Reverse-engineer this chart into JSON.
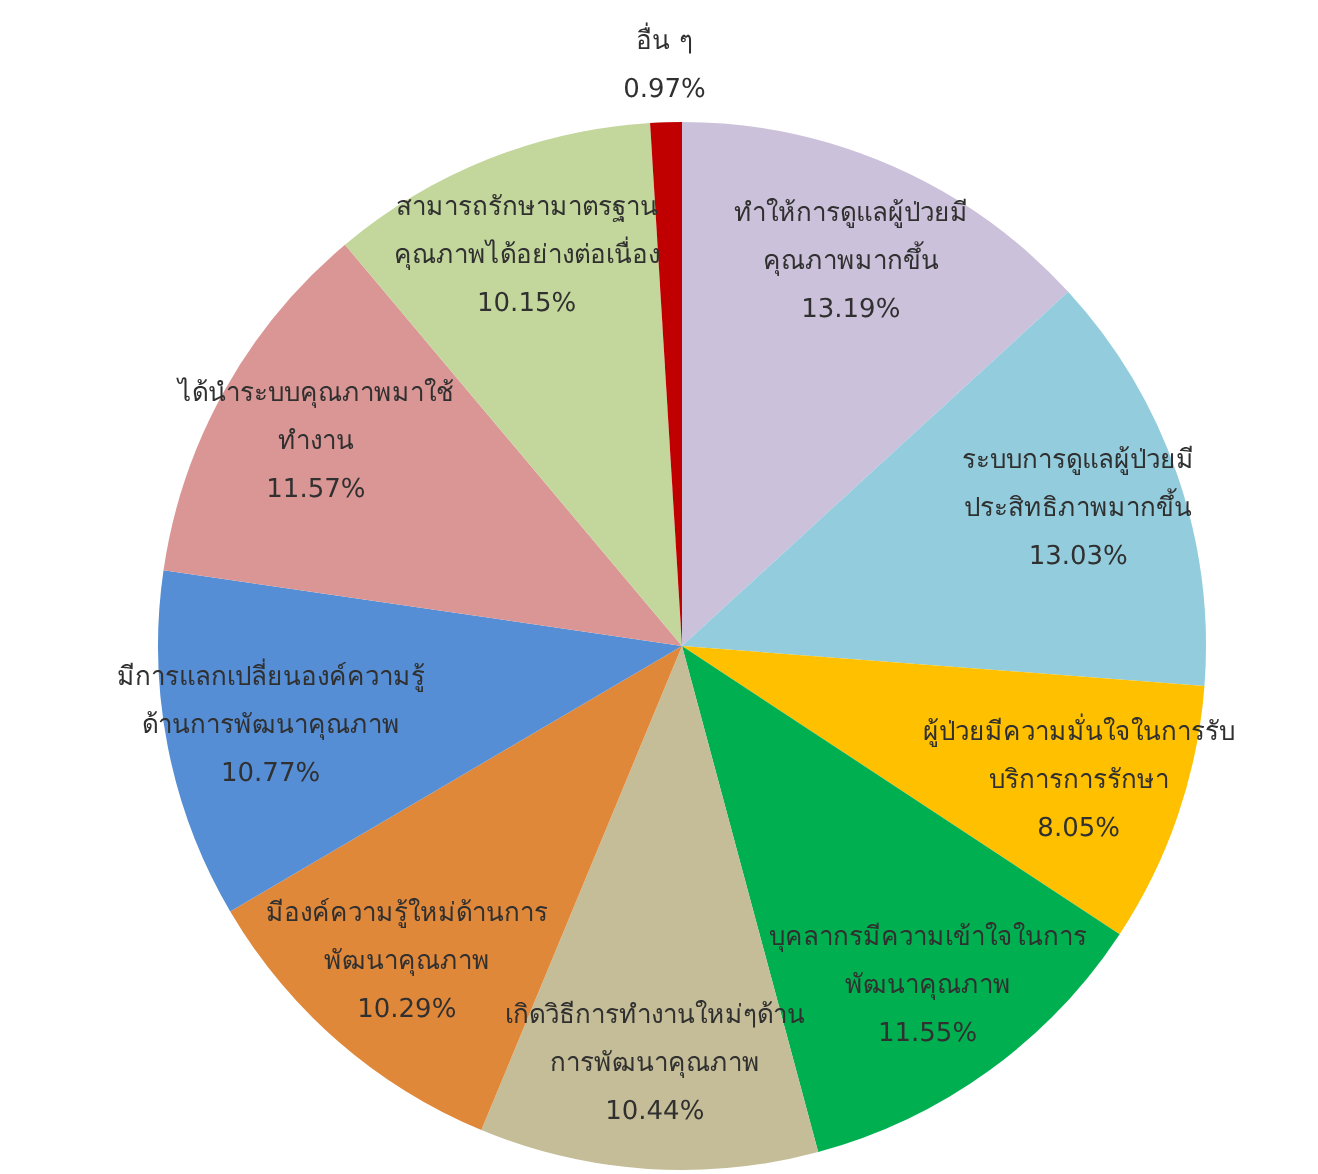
{
  "chart_data": {
    "type": "pie",
    "categories": [
      "ทำให้การดูแลผู้ป่วยมีคุณภาพมากขึ้น",
      "ระบบการดูแลผู้ป่วยมีประสิทธิภาพมากขึ้น",
      "ผู้ป่วยมีความมั่นใจในการรับบริการการรักษา",
      "บุคลากรมีความเข้าใจในการพัฒนาคุณภาพ",
      "เกิดวิธีการทำงานใหม่ๆด้านการพัฒนาคุณภาพ",
      "มีองค์ความรู้ใหม่ด้านการพัฒนาคุณภาพ",
      "มีการแลกเปลี่ยนองค์ความรู้ด้านการพัฒนาคุณภาพ",
      "ได้นำระบบคุณภาพมาใช้ทำงาน",
      "สามารถรักษามาตรฐานคุณภาพได้อย่างต่อเนื่อง",
      "อื่น ๆ"
    ],
    "values": [
      13.19,
      13.03,
      8.05,
      11.55,
      10.44,
      10.29,
      10.77,
      11.57,
      10.15,
      0.97
    ],
    "colors": [
      "#ccc1da",
      "#93cddd",
      "#ffc000",
      "#00b050",
      "#c4bd97",
      "#e0883a",
      "#558ed5",
      "#d99694",
      "#c3d69b",
      "#c00000"
    ],
    "value_labels": [
      "13.19%",
      "13.03%",
      "8.05%",
      "11.55%",
      "10.44%",
      "10.29%",
      "10.77%",
      "11.57%",
      "10.15%",
      "0.97%"
    ],
    "legend": false
  }
}
